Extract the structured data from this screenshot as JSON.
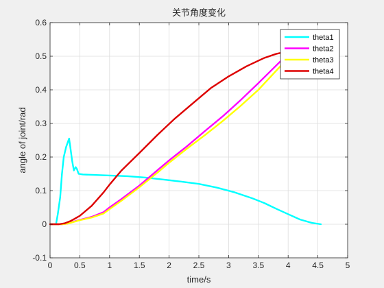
{
  "chart_data": {
    "type": "line",
    "title": "关节角度变化",
    "xlabel": "time/s",
    "ylabel": "angle of joint/rad",
    "xlim": [
      0,
      5
    ],
    "ylim": [
      -0.1,
      0.6
    ],
    "xticks": [
      0,
      0.5,
      1,
      1.5,
      2,
      2.5,
      3,
      3.5,
      4,
      4.5,
      5
    ],
    "xtick_labels": [
      "0",
      "0.5",
      "1",
      "1.5",
      "2",
      "2.5",
      "3",
      "3.5",
      "4",
      "4.5",
      "5"
    ],
    "yticks": [
      -0.1,
      0,
      0.1,
      0.2,
      0.3,
      0.4,
      0.5,
      0.6
    ],
    "ytick_labels": [
      "-0.1",
      "0",
      "0.1",
      "0.2",
      "0.3",
      "0.4",
      "0.5",
      "0.6"
    ],
    "grid": true,
    "legend_position": "top-right",
    "series": [
      {
        "name": "theta1",
        "color": "#00ffff",
        "points": [
          [
            0.1,
            0.0
          ],
          [
            0.13,
            0.03
          ],
          [
            0.17,
            0.08
          ],
          [
            0.2,
            0.15
          ],
          [
            0.23,
            0.2
          ],
          [
            0.27,
            0.23
          ],
          [
            0.3,
            0.245
          ],
          [
            0.32,
            0.255
          ],
          [
            0.34,
            0.23
          ],
          [
            0.37,
            0.19
          ],
          [
            0.4,
            0.16
          ],
          [
            0.43,
            0.17
          ],
          [
            0.45,
            0.165
          ],
          [
            0.48,
            0.15
          ],
          [
            0.55,
            0.148
          ],
          [
            0.7,
            0.147
          ],
          [
            1.0,
            0.145
          ],
          [
            1.3,
            0.143
          ],
          [
            1.6,
            0.139
          ],
          [
            1.9,
            0.133
          ],
          [
            2.2,
            0.127
          ],
          [
            2.5,
            0.12
          ],
          [
            2.8,
            0.109
          ],
          [
            3.1,
            0.095
          ],
          [
            3.4,
            0.077
          ],
          [
            3.6,
            0.063
          ],
          [
            3.8,
            0.046
          ],
          [
            4.0,
            0.03
          ],
          [
            4.2,
            0.014
          ],
          [
            4.4,
            0.004
          ],
          [
            4.55,
            0.0
          ]
        ]
      },
      {
        "name": "theta2",
        "color": "#ff00ff",
        "points": [
          [
            0.0,
            0.0
          ],
          [
            0.2,
            0.0
          ],
          [
            0.3,
            0.002
          ],
          [
            0.4,
            0.008
          ],
          [
            0.5,
            0.013
          ],
          [
            0.7,
            0.022
          ],
          [
            0.9,
            0.036
          ],
          [
            1.0,
            0.05
          ],
          [
            1.2,
            0.075
          ],
          [
            1.5,
            0.115
          ],
          [
            1.8,
            0.16
          ],
          [
            2.0,
            0.19
          ],
          [
            2.3,
            0.232
          ],
          [
            2.6,
            0.277
          ],
          [
            2.9,
            0.321
          ],
          [
            3.2,
            0.369
          ],
          [
            3.5,
            0.42
          ],
          [
            3.7,
            0.455
          ],
          [
            3.9,
            0.49
          ],
          [
            3.95,
            0.497
          ]
        ]
      },
      {
        "name": "theta3",
        "color": "#ffff00",
        "points": [
          [
            0.0,
            0.0
          ],
          [
            0.2,
            0.0
          ],
          [
            0.3,
            0.002
          ],
          [
            0.4,
            0.007
          ],
          [
            0.5,
            0.012
          ],
          [
            0.7,
            0.02
          ],
          [
            0.9,
            0.032
          ],
          [
            1.0,
            0.045
          ],
          [
            1.2,
            0.07
          ],
          [
            1.5,
            0.11
          ],
          [
            1.8,
            0.153
          ],
          [
            2.0,
            0.183
          ],
          [
            2.3,
            0.225
          ],
          [
            2.6,
            0.265
          ],
          [
            2.9,
            0.307
          ],
          [
            3.2,
            0.352
          ],
          [
            3.5,
            0.4
          ],
          [
            3.7,
            0.438
          ],
          [
            3.9,
            0.476
          ],
          [
            3.95,
            0.487
          ]
        ]
      },
      {
        "name": "theta4",
        "color": "#dd0000",
        "points": [
          [
            0.0,
            0.0
          ],
          [
            0.15,
            0.0
          ],
          [
            0.25,
            0.003
          ],
          [
            0.35,
            0.01
          ],
          [
            0.4,
            0.015
          ],
          [
            0.45,
            0.02
          ],
          [
            0.5,
            0.025
          ],
          [
            0.7,
            0.055
          ],
          [
            0.9,
            0.095
          ],
          [
            1.0,
            0.118
          ],
          [
            1.2,
            0.16
          ],
          [
            1.5,
            0.212
          ],
          [
            1.8,
            0.265
          ],
          [
            2.1,
            0.315
          ],
          [
            2.4,
            0.36
          ],
          [
            2.7,
            0.405
          ],
          [
            3.0,
            0.44
          ],
          [
            3.3,
            0.47
          ],
          [
            3.6,
            0.495
          ],
          [
            3.8,
            0.507
          ],
          [
            4.0,
            0.515
          ]
        ]
      }
    ]
  }
}
